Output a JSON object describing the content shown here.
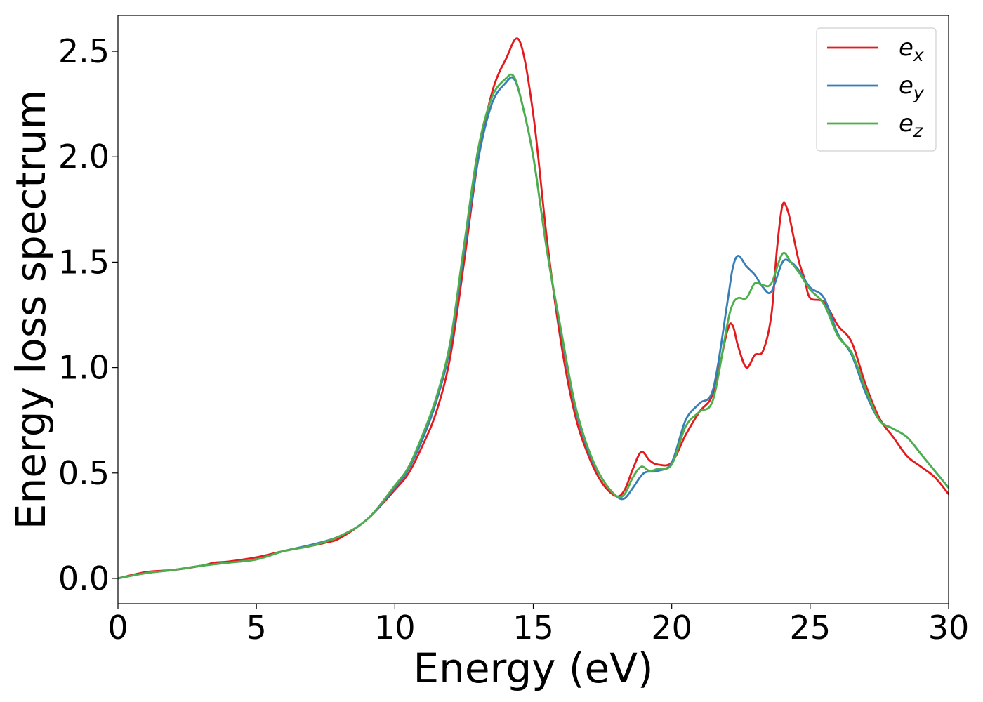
{
  "chart_data": {
    "type": "line",
    "title": "",
    "xlabel": "Energy (eV)",
    "ylabel": "Energy loss spectrum",
    "xlim": [
      0,
      30
    ],
    "ylim": [
      -0.12,
      2.67
    ],
    "xticks": [
      0,
      5,
      10,
      15,
      20,
      25,
      30
    ],
    "xtick_labels": [
      "0",
      "5",
      "10",
      "15",
      "20",
      "25",
      "30"
    ],
    "yticks": [
      0.0,
      0.5,
      1.0,
      1.5,
      2.0,
      2.5
    ],
    "ytick_labels": [
      "0.0",
      "0.5",
      "1.0",
      "1.5",
      "2.0",
      "2.5"
    ],
    "grid": false,
    "legend_position": "top-right",
    "series": [
      {
        "name": "e_x",
        "legend_base": "e",
        "legend_sub": "x",
        "color": "#e41a1c",
        "x": [
          0,
          1,
          2,
          3,
          3.5,
          4,
          5,
          6,
          7,
          7.5,
          8,
          9,
          10,
          10.5,
          11,
          11.5,
          12,
          12.5,
          13,
          13.5,
          14,
          14.5,
          15,
          15.5,
          16,
          16.5,
          17,
          17.5,
          18,
          18.3,
          18.6,
          18.9,
          19.2,
          19.5,
          20,
          20.5,
          21,
          21.5,
          22,
          22.2,
          22.4,
          22.7,
          23,
          23.3,
          23.6,
          23.8,
          24,
          24.2,
          24.4,
          24.6,
          24.8,
          25,
          25.5,
          26,
          26.5,
          27,
          27.5,
          28,
          28.5,
          29,
          29.5,
          30
        ],
        "y": [
          0.0,
          0.03,
          0.04,
          0.06,
          0.075,
          0.08,
          0.1,
          0.13,
          0.155,
          0.17,
          0.19,
          0.28,
          0.42,
          0.5,
          0.63,
          0.79,
          1.05,
          1.5,
          1.98,
          2.3,
          2.46,
          2.55,
          2.2,
          1.6,
          1.12,
          0.78,
          0.58,
          0.45,
          0.39,
          0.42,
          0.52,
          0.6,
          0.56,
          0.54,
          0.55,
          0.68,
          0.79,
          0.88,
          1.17,
          1.2,
          1.1,
          1.0,
          1.06,
          1.08,
          1.25,
          1.56,
          1.77,
          1.74,
          1.62,
          1.5,
          1.42,
          1.33,
          1.31,
          1.2,
          1.12,
          0.92,
          0.76,
          0.67,
          0.58,
          0.53,
          0.48,
          0.4
        ]
      },
      {
        "name": "e_y",
        "legend_base": "e",
        "legend_sub": "y",
        "color": "#377eb8",
        "x": [
          0,
          1,
          2,
          3,
          4,
          5,
          6,
          7,
          8,
          9,
          10,
          10.5,
          11,
          11.5,
          12,
          12.5,
          13,
          13.5,
          14,
          14.3,
          14.6,
          15,
          15.5,
          16,
          16.5,
          17,
          17.5,
          18,
          18.3,
          18.6,
          19,
          19.5,
          20,
          20.5,
          21,
          21.5,
          22,
          22.2,
          22.4,
          22.7,
          23,
          23.3,
          23.6,
          24,
          24.3,
          24.6,
          25,
          25.5,
          26,
          26.5,
          27,
          27.5,
          28,
          28.5,
          29,
          29.5,
          30
        ],
        "y": [
          0.0,
          0.025,
          0.04,
          0.06,
          0.075,
          0.09,
          0.13,
          0.16,
          0.2,
          0.28,
          0.43,
          0.52,
          0.66,
          0.84,
          1.1,
          1.55,
          1.98,
          2.25,
          2.35,
          2.37,
          2.25,
          2.0,
          1.55,
          1.17,
          0.82,
          0.6,
          0.47,
          0.39,
          0.38,
          0.43,
          0.5,
          0.51,
          0.55,
          0.75,
          0.83,
          0.9,
          1.3,
          1.47,
          1.53,
          1.48,
          1.44,
          1.38,
          1.36,
          1.5,
          1.5,
          1.46,
          1.38,
          1.33,
          1.16,
          1.06,
          0.88,
          0.75,
          0.71,
          0.67,
          0.59,
          0.51,
          0.43
        ]
      },
      {
        "name": "e_z",
        "legend_base": "e",
        "legend_sub": "z",
        "color": "#4daf4a",
        "x": [
          0,
          1,
          2,
          3,
          4,
          5,
          6,
          7,
          8,
          9,
          10,
          10.5,
          11,
          11.5,
          12,
          12.5,
          13,
          13.5,
          14,
          14.3,
          14.6,
          15,
          15.5,
          16,
          16.5,
          17,
          17.5,
          18,
          18.3,
          18.6,
          18.9,
          19.2,
          19.5,
          20,
          20.5,
          21,
          21.5,
          22,
          22.2,
          22.4,
          22.7,
          23,
          23.3,
          23.6,
          24,
          24.3,
          24.6,
          25,
          25.5,
          26,
          26.5,
          27,
          27.5,
          28,
          28.5,
          29,
          29.5,
          30
        ],
        "y": [
          0.0,
          0.025,
          0.04,
          0.06,
          0.075,
          0.09,
          0.13,
          0.155,
          0.2,
          0.28,
          0.44,
          0.53,
          0.68,
          0.86,
          1.12,
          1.58,
          2.03,
          2.28,
          2.37,
          2.38,
          2.25,
          2.0,
          1.55,
          1.18,
          0.83,
          0.61,
          0.47,
          0.39,
          0.4,
          0.48,
          0.53,
          0.51,
          0.52,
          0.54,
          0.72,
          0.79,
          0.85,
          1.2,
          1.3,
          1.33,
          1.33,
          1.4,
          1.39,
          1.4,
          1.54,
          1.5,
          1.45,
          1.37,
          1.3,
          1.15,
          1.07,
          0.9,
          0.75,
          0.71,
          0.67,
          0.59,
          0.51,
          0.43
        ]
      }
    ]
  }
}
